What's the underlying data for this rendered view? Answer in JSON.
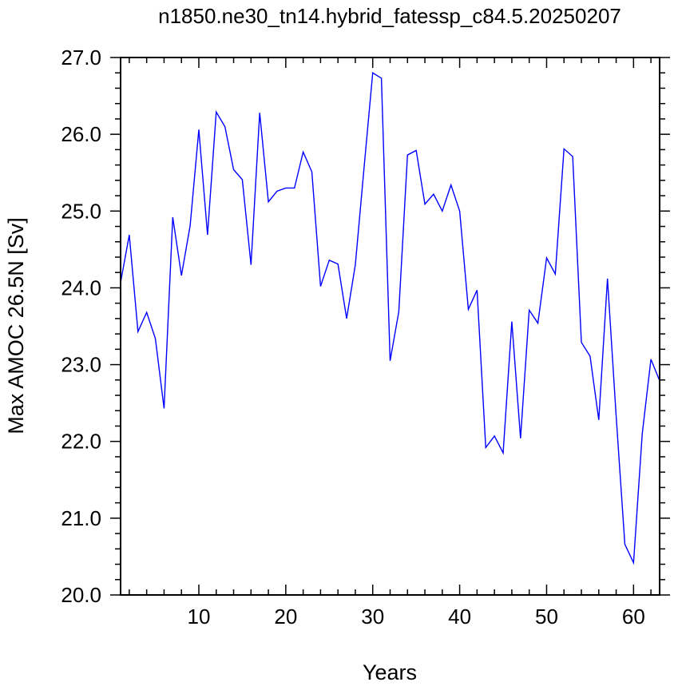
{
  "chart_data": {
    "type": "line",
    "title": "n1850.ne30_tn14.hybrid_fatessp_c84.5.20250207",
    "xlabel": "Years",
    "ylabel": "Max AMOC 26.5N [Sv]",
    "xlim": [
      1,
      63
    ],
    "ylim": [
      20.0,
      27.0
    ],
    "x_ticks": [
      10,
      20,
      30,
      40,
      50,
      60
    ],
    "x_tick_labels": [
      "10",
      "20",
      "30",
      "40",
      "50",
      "60"
    ],
    "y_ticks": [
      20.0,
      21.0,
      22.0,
      23.0,
      24.0,
      25.0,
      26.0,
      27.0
    ],
    "y_tick_labels": [
      "20.0",
      "21.0",
      "22.0",
      "23.0",
      "24.0",
      "25.0",
      "26.0",
      "27.0"
    ],
    "grid": false,
    "series": [
      {
        "color": "#0000ff",
        "x": [
          1,
          2,
          3,
          4,
          5,
          6,
          7,
          8,
          9,
          10,
          11,
          12,
          13,
          14,
          15,
          16,
          17,
          18,
          19,
          20,
          21,
          22,
          23,
          24,
          25,
          26,
          27,
          28,
          29,
          30,
          31,
          32,
          33,
          34,
          35,
          36,
          37,
          38,
          39,
          40,
          41,
          42,
          43,
          44,
          45,
          46,
          47,
          48,
          49,
          50,
          51,
          52,
          53,
          54,
          55,
          56,
          57,
          58,
          59,
          60,
          61,
          62,
          63
        ],
        "values": [
          24.07,
          24.69,
          23.43,
          23.68,
          23.34,
          22.43,
          24.92,
          24.16,
          24.81,
          26.06,
          24.69,
          26.29,
          26.1,
          25.54,
          25.41,
          24.3,
          26.28,
          25.12,
          25.26,
          25.3,
          25.3,
          25.77,
          25.51,
          24.02,
          24.36,
          24.31,
          23.6,
          24.3,
          25.56,
          26.8,
          26.73,
          23.05,
          23.69,
          25.73,
          25.79,
          25.09,
          25.22,
          25.0,
          25.34,
          25.0,
          23.72,
          23.97,
          21.92,
          22.07,
          21.85,
          23.56,
          22.04,
          23.71,
          23.54,
          24.39,
          24.18,
          25.81,
          25.71,
          23.29,
          23.11,
          22.28,
          24.12,
          22.33,
          20.66,
          20.42,
          22.1,
          23.07,
          22.79
        ]
      }
    ]
  }
}
